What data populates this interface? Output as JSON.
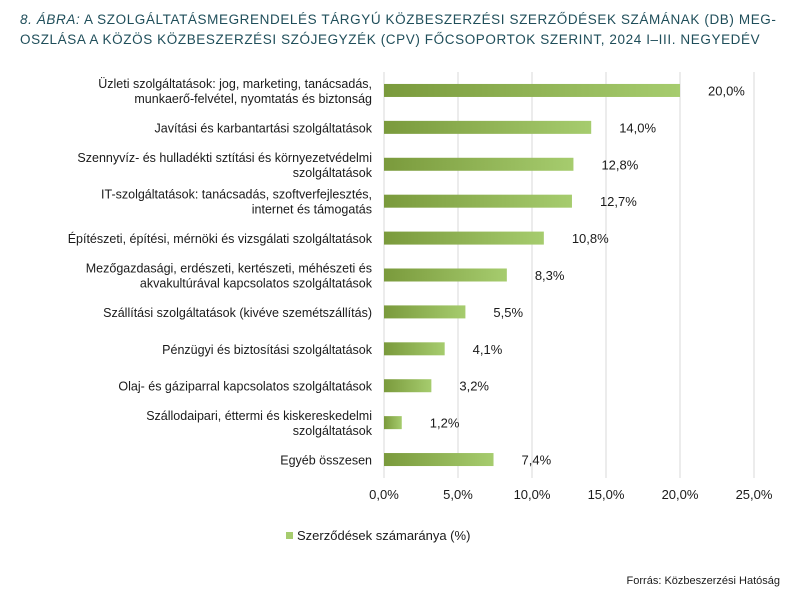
{
  "title": {
    "figure_label": "8. ÁBRA:",
    "line1": "A SZOLGÁLTATÁSMEGRENDELÉS TÁRGYÚ KÖZBESZERZÉSI SZERZŐDÉSEK SZÁMÁNAK (DB) MEG-",
    "line2": "OSZLÁSA A KÖZÖS KÖZBESZERZÉSI SZÓJEGYZÉK (CPV) FŐCSOPORTOK SZERINT, 2024 I–III. NEGYEDÉV"
  },
  "source": "Forrás: Közbeszerzési Hatóság",
  "colors": {
    "bar_dark": "#7a9a3c",
    "bar_light": "#a6cc6e",
    "grid": "#d9d9d9",
    "text": "#1a1a1a"
  },
  "chart_data": {
    "type": "bar",
    "orientation": "horizontal",
    "categories": [
      [
        "Üzleti szolgáltatások: jog, marketing, tanácsadás,",
        "munkaerő-felvétel, nyomtatás és biztonság"
      ],
      [
        "Javítási és karbantartási szolgáltatások"
      ],
      [
        "Szennyvíz- és hulladékti sztítási és környezetvédelmi",
        "szolgáltatások"
      ],
      [
        "IT-szolgáltatások: tanácsadás, szoftverfejlesztés,",
        "internet és támogatás"
      ],
      [
        "Építészeti, építési, mérnöki és vizsgálati szolgáltatások"
      ],
      [
        "Mezőgazdasági, erdészeti, kertészeti, méhészeti és",
        "akvakultúrával kapcsolatos szolgáltatások"
      ],
      [
        "Szállítási szolgáltatások (kivéve szemétszállítás)"
      ],
      [
        "Pénzügyi és biztosítási szolgáltatások"
      ],
      [
        "Olaj- és gáziparral kapcsolatos szolgáltatások"
      ],
      [
        "Szállodaipari, éttermi és kiskereskedelmi",
        "szolgáltatások"
      ],
      [
        "Egyéb összesen"
      ]
    ],
    "values": [
      20.0,
      14.0,
      12.8,
      12.7,
      10.8,
      8.3,
      5.5,
      4.1,
      3.2,
      1.2,
      7.4
    ],
    "value_labels": [
      "20,0%",
      "14,0%",
      "12,8%",
      "12,7%",
      "10,8%",
      "8,3%",
      "5,5%",
      "4,1%",
      "3,2%",
      "1,2%",
      "7,4%"
    ],
    "xlim": [
      0,
      25
    ],
    "xticks": [
      0,
      5,
      10,
      15,
      20,
      25
    ],
    "xtick_labels": [
      "0,0%",
      "5,0%",
      "10,0%",
      "15,0%",
      "20,0%",
      "25,0%"
    ],
    "grid": true,
    "legend": {
      "label": "Szerződések számaránya (%)",
      "position": "bottom"
    }
  }
}
